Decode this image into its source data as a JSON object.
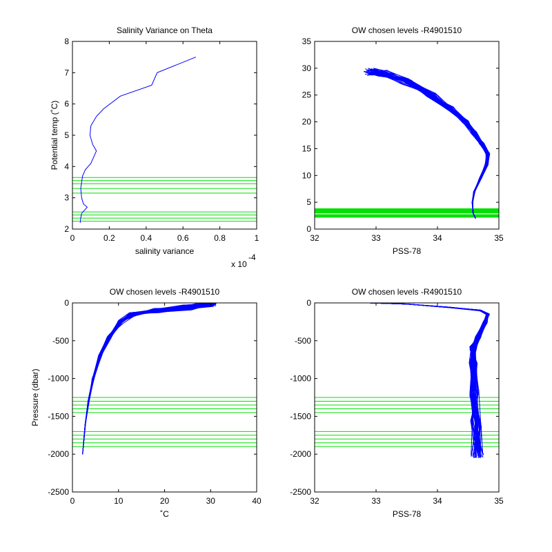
{
  "chart_data": [
    {
      "type": "line",
      "title": "Salinity Variance on Theta",
      "xlabel": "salinity variance",
      "ylabel": "Potential temp (˚C)",
      "xlim": [
        0,
        1
      ],
      "ylim": [
        2,
        8
      ],
      "xticks": [
        "0",
        "0.2",
        "0.4",
        "0.6",
        "0.8",
        "1"
      ],
      "yticks": [
        "2",
        "3",
        "4",
        "5",
        "6",
        "7",
        "8"
      ],
      "x_exponent": "x 10",
      "x_exponent_power": "-4",
      "series": [
        {
          "color": "#0000ff",
          "points": [
            [
              0.042,
              2.2
            ],
            [
              0.045,
              2.35
            ],
            [
              0.05,
              2.5
            ],
            [
              0.08,
              2.7
            ],
            [
              0.06,
              2.8
            ],
            [
              0.05,
              3.0
            ],
            [
              0.045,
              3.3
            ],
            [
              0.055,
              3.7
            ],
            [
              0.07,
              3.9
            ],
            [
              0.1,
              4.1
            ],
            [
              0.13,
              4.5
            ],
            [
              0.11,
              4.7
            ],
            [
              0.095,
              5.0
            ],
            [
              0.1,
              5.3
            ],
            [
              0.13,
              5.6
            ],
            [
              0.17,
              5.85
            ],
            [
              0.26,
              6.25
            ],
            [
              0.43,
              6.6
            ],
            [
              0.46,
              7.0
            ],
            [
              0.67,
              7.5
            ]
          ]
        }
      ],
      "reference_lines": {
        "color": "#00e000",
        "y": [
          2.25,
          2.35,
          2.45,
          2.55,
          3.15,
          3.3,
          3.45,
          3.55,
          3.65
        ]
      }
    },
    {
      "type": "line",
      "title": "OW chosen levels -R4901510",
      "xlabel": "PSS-78",
      "ylabel": "",
      "xlim": [
        32,
        35
      ],
      "ylim": [
        0,
        35
      ],
      "xticks": [
        "32",
        "33",
        "34",
        "35"
      ],
      "yticks": [
        "0",
        "5",
        "10",
        "15",
        "20",
        "25",
        "30",
        "35"
      ],
      "series": [
        {
          "color": "#0000ff",
          "profile_count": 40,
          "points": [
            [
              34.62,
              2.0
            ],
            [
              34.58,
              3.0
            ],
            [
              34.57,
              5.0
            ],
            [
              34.6,
              7.0
            ],
            [
              34.7,
              9.5
            ],
            [
              34.8,
              12.0
            ],
            [
              34.82,
              14.0
            ],
            [
              34.72,
              16.0
            ],
            [
              34.6,
              18.0
            ],
            [
              34.45,
              20.0
            ],
            [
              34.2,
              22.5
            ],
            [
              33.9,
              25.0
            ],
            [
              33.5,
              27.5
            ],
            [
              33.1,
              29.0
            ],
            [
              32.9,
              29.3
            ]
          ]
        }
      ],
      "reference_lines": {
        "color": "#00e000",
        "y": [
          2.3,
          2.6,
          3.1,
          3.4,
          3.7
        ]
      }
    },
    {
      "type": "line",
      "title": "OW chosen levels -R4901510",
      "xlabel": "˚C",
      "ylabel": "Pressure (dbar)",
      "xlim": [
        0,
        40
      ],
      "ylim": [
        -2500,
        0
      ],
      "xticks": [
        "0",
        "10",
        "20",
        "30",
        "40"
      ],
      "yticks": [
        "-2500",
        "-2000",
        "-1500",
        "-1000",
        "-500",
        "0"
      ],
      "series": [
        {
          "color": "#0000ff",
          "profile_count": 40,
          "points": [
            [
              2.2,
              -2000
            ],
            [
              2.8,
              -1600
            ],
            [
              3.5,
              -1300
            ],
            [
              4.5,
              -1000
            ],
            [
              6.0,
              -700
            ],
            [
              8.0,
              -450
            ],
            [
              10.5,
              -250
            ],
            [
              13.0,
              -150
            ],
            [
              18.0,
              -100
            ],
            [
              25.0,
              -60
            ],
            [
              29.5,
              -20
            ],
            [
              30.0,
              0
            ]
          ]
        }
      ],
      "reference_lines": {
        "color": "#00e000",
        "y": [
          -1250,
          -1300,
          -1350,
          -1400,
          -1450,
          -1700,
          -1750,
          -1800,
          -1850,
          -1900
        ]
      }
    },
    {
      "type": "line",
      "title": "OW chosen levels -R4901510",
      "xlabel": "PSS-78",
      "ylabel": "",
      "xlim": [
        32,
        35
      ],
      "ylim": [
        -2500,
        0
      ],
      "xticks": [
        "32",
        "33",
        "34",
        "35"
      ],
      "yticks": [
        "-2500",
        "-2000",
        "-1500",
        "-1000",
        "-500",
        "0"
      ],
      "series": [
        {
          "color": "#0000ff",
          "profile_count": 40,
          "points": [
            [
              32.9,
              0
            ],
            [
              33.5,
              -15
            ],
            [
              34.2,
              -60
            ],
            [
              34.7,
              -100
            ],
            [
              34.82,
              -150
            ],
            [
              34.78,
              -250
            ],
            [
              34.66,
              -450
            ],
            [
              34.58,
              -600
            ],
            [
              34.58,
              -800
            ],
            [
              34.6,
              -1200
            ],
            [
              34.63,
              -1600
            ],
            [
              34.65,
              -2000
            ]
          ]
        }
      ],
      "reference_lines": {
        "color": "#00e000",
        "y": [
          -1250,
          -1300,
          -1350,
          -1400,
          -1450,
          -1700,
          -1750,
          -1800,
          -1850,
          -1900
        ]
      }
    }
  ]
}
